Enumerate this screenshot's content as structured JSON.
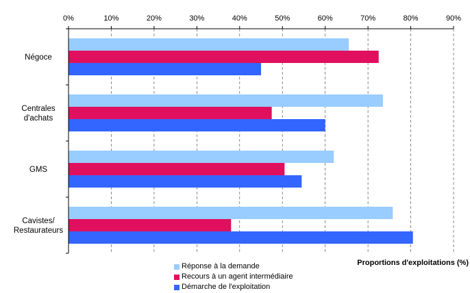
{
  "chart_data": {
    "type": "bar",
    "orientation": "horizontal",
    "categories": [
      [
        "Négoce"
      ],
      [
        "Centrales",
        "d'achats"
      ],
      [
        "GMS"
      ],
      [
        "Cavistes/",
        "Restaurateurs"
      ]
    ],
    "series": [
      {
        "name": "Réponse à la demande",
        "color": "#99ccff",
        "values": [
          65.5,
          73.5,
          62.0,
          75.8
        ]
      },
      {
        "name": "Recours à un agent intermédiaire",
        "color": "#e0105e",
        "values": [
          72.5,
          47.5,
          50.5,
          38.0
        ]
      },
      {
        "name": "Démarche de l'exploitation",
        "color": "#3366ff",
        "values": [
          45.0,
          60.0,
          54.5,
          80.5
        ]
      }
    ],
    "xlabel": "Proportions d'exploitations (%)",
    "xlim": [
      0,
      90
    ],
    "xticks": [
      "0%",
      "10%",
      "20%",
      "30%",
      "40%",
      "50%",
      "60%",
      "70%",
      "80%",
      "90%"
    ],
    "x_axis_position": "top",
    "grid": "vertical-dashed",
    "legend_position": "bottom"
  }
}
